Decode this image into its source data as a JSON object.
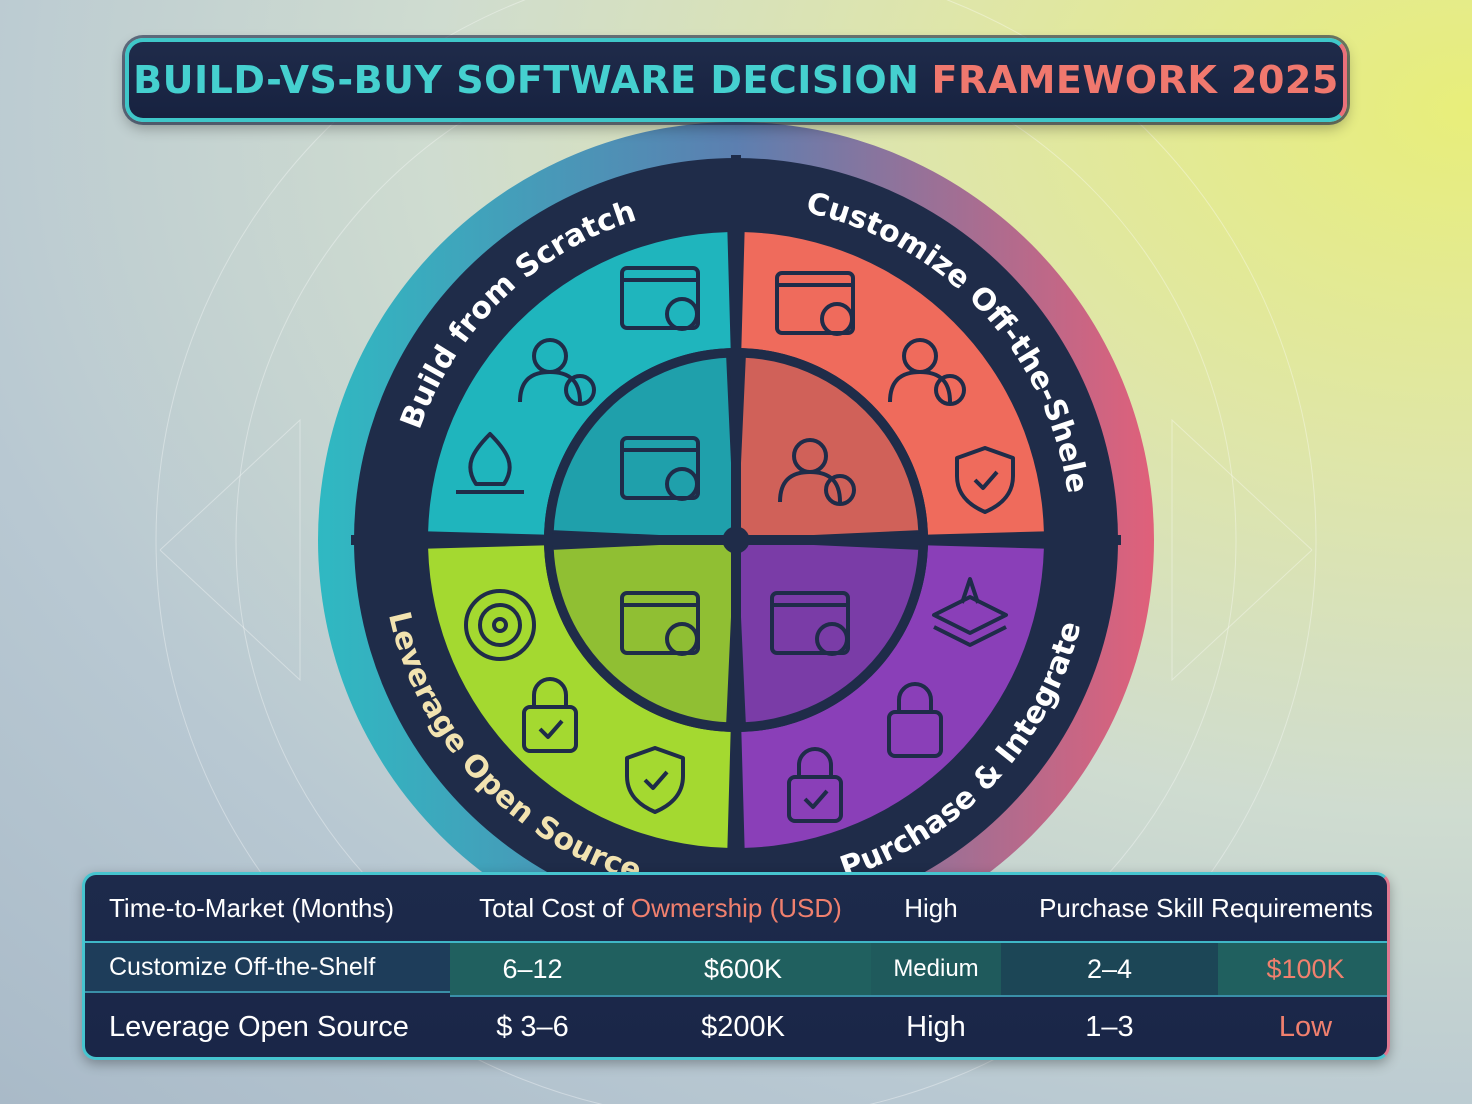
{
  "title": {
    "part1": "BUILD-VS-BUY SOFTWARE DECISION",
    "part2": "FRAMEWORK 2025"
  },
  "quadrants": [
    {
      "label": "Build from Scratch",
      "color": "#1fb5bd",
      "icons": [
        "calendar-check-icon",
        "developer-icon",
        "flame-icon",
        "workflow-icon"
      ]
    },
    {
      "label": "Customize Off-the-Shele",
      "color": "#ef6b5c",
      "icons": [
        "analytics-dashboard-icon",
        "team-icon",
        "settings-person-icon",
        "shield-briefcase-icon"
      ]
    },
    {
      "label": "Leverage Open Source",
      "color": "#a4d930",
      "icons": [
        "target-icon",
        "map-laptop-icon",
        "lock-check-icon",
        "shield-check-icon"
      ]
    },
    {
      "label": "Purchase & Integrate",
      "color": "#8a3fb8",
      "icons": [
        "browser-window-icon",
        "layers-icon",
        "lock-icon",
        "lock-check-icon"
      ]
    }
  ],
  "colors": {
    "teal": "#1fb5bd",
    "coral": "#ef6b5c",
    "lime": "#a4d930",
    "purple": "#8a3fb8",
    "navy": "#1d2a4b"
  },
  "table": {
    "header": {
      "col1": "Time-to-Market (Months)",
      "col2a": "Total Cost of ",
      "col2b": "Owmership (USD)",
      "col3": "High",
      "col4": "Purchase Skill Requirements"
    },
    "rows": [
      [
        "Customize Off-the-Shelf",
        "6–12",
        "$600K",
        "Medium",
        "2–4",
        "$100K"
      ],
      [
        "Leverage Open Source",
        "$ 3–6",
        "$200K",
        "High",
        "1–3",
        "Low"
      ]
    ]
  }
}
